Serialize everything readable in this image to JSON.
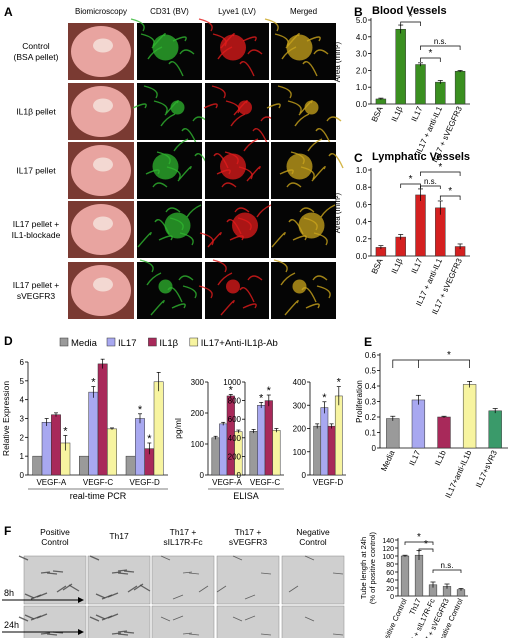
{
  "panel_a": {
    "letter": "A",
    "columns": [
      "Biomicroscopy",
      "CD31 (BV)",
      "Lyve1 (LV)",
      "Merged"
    ],
    "rows": [
      {
        "label": [
          "Control",
          "(BSA pellet)"
        ]
      },
      {
        "label": [
          "IL1β pellet"
        ]
      },
      {
        "label": [
          "IL17 pellet"
        ]
      },
      {
        "label": [
          "IL17 pellet +",
          "IL1-blockade"
        ]
      },
      {
        "label": [
          "IL17 pellet +",
          "sVEGFR3"
        ]
      }
    ],
    "colors": {
      "green": "#2fb52f",
      "red": "#e21b1b",
      "merged": "#c9a41c",
      "eye": "#e8a4a0"
    }
  },
  "panel_f": {
    "letter": "F",
    "columns": [
      "Positive Control",
      "Th17",
      "Th17 + sIL17R-Fc",
      "Th17 + sVEGFR3",
      "Negative Control"
    ],
    "column_lines": [
      [
        "Positive",
        "Control"
      ],
      [
        "Th17"
      ],
      [
        "Th17 +",
        "sIL17R-Fc"
      ],
      [
        "Th17 +",
        "sVEGFR3"
      ],
      [
        "Negative",
        "Control"
      ]
    ],
    "time_labels": [
      "8h",
      "24h"
    ]
  },
  "chart_data": [
    {
      "id": "B",
      "letter": "B",
      "type": "bar",
      "title": "Blood Vessels",
      "ylabel": "Area (mm²)",
      "categories": [
        "BSA",
        "IL1β",
        "IL17",
        "IL17 + anti-IL1",
        "IL17 + sVEGFR3"
      ],
      "values": [
        0.3,
        4.45,
        2.35,
        1.3,
        1.95
      ],
      "errors": [
        0.05,
        0.25,
        0.1,
        0.1,
        0.05
      ],
      "colors": [
        "#3a8f20",
        "#3a8f20",
        "#3a8f20",
        "#3a8f20",
        "#3a8f20"
      ],
      "ylim": [
        0,
        5
      ],
      "yticks": [
        "0.0",
        "1.0",
        "2.0",
        "3.0",
        "4.0",
        "5.0"
      ],
      "annotations": [
        "*",
        "*",
        "n.s."
      ]
    },
    {
      "id": "C",
      "letter": "C",
      "type": "bar",
      "title": "Lymphatic Vessels",
      "ylabel": "Area (mm²)",
      "categories": [
        "BSA",
        "IL1β",
        "IL17",
        "IL17 + anti-IL1",
        "IL17 + sVEGFR3"
      ],
      "values": [
        0.1,
        0.22,
        0.71,
        0.56,
        0.11
      ],
      "errors": [
        0.02,
        0.03,
        0.07,
        0.08,
        0.03
      ],
      "colors": [
        "#d42020",
        "#d42020",
        "#d42020",
        "#d42020",
        "#d42020"
      ],
      "ylim": [
        0,
        1.0
      ],
      "yticks": [
        "0.0",
        "0.2",
        "0.4",
        "0.6",
        "0.8",
        "1.0"
      ],
      "annotations": [
        "*",
        "n.s.",
        "*",
        "*"
      ]
    },
    {
      "id": "D1",
      "letter": "D",
      "type": "bar",
      "ylabel": "Relative Expression",
      "xlabel": "real-time PCR",
      "categories": [
        "VEGF-A",
        "VEGF-C",
        "VEGF-D"
      ],
      "series": [
        {
          "name": "Media",
          "color": "#9a9a9a",
          "values": [
            1.0,
            1.0,
            1.0
          ],
          "errors": [
            0,
            0,
            0
          ]
        },
        {
          "name": "IL17",
          "color": "#a8a8f0",
          "values": [
            2.8,
            4.4,
            3.0
          ],
          "errors": [
            0.2,
            0.3,
            0.25
          ]
        },
        {
          "name": "IL1β",
          "color": "#a8295a",
          "values": [
            3.2,
            5.9,
            1.4
          ],
          "errors": [
            0.1,
            0.25,
            0.3
          ]
        },
        {
          "name": "IL17+Anti-IL1β-Ab",
          "color": "#f7f4a0",
          "values": [
            1.7,
            2.45,
            4.95
          ],
          "errors": [
            0.4,
            0.05,
            0.5
          ]
        }
      ],
      "ylim": [
        0,
        6
      ],
      "yticks": [
        "0",
        "1",
        "2",
        "3",
        "4",
        "5",
        "6"
      ],
      "stars": [
        [
          2,
          1
        ],
        [
          2,
          2
        ],
        [
          1,
          1
        ],
        [
          0,
          3
        ]
      ]
    },
    {
      "id": "D2",
      "type": "bar",
      "ylabel": "pg/ml",
      "xlabel": "ELISA",
      "categories": [
        "VEGF-A",
        "VEGF-C"
      ],
      "series": [
        {
          "name": "Media",
          "color": "#9a9a9a",
          "values": [
            120,
            470
          ],
          "errors": [
            5,
            20
          ]
        },
        {
          "name": "IL17",
          "color": "#a8a8f0",
          "values": [
            165,
            750
          ],
          "errors": [
            5,
            30
          ]
        },
        {
          "name": "IL1β",
          "color": "#a8295a",
          "values": [
            255,
            800
          ],
          "errors": [
            5,
            60
          ]
        },
        {
          "name": "IL17+Anti-IL1β-Ab",
          "color": "#f7f4a0",
          "values": [
            140,
            480
          ],
          "errors": [
            5,
            20
          ]
        }
      ],
      "left_axis": {
        "ylim": [
          0,
          300
        ],
        "yticks": [
          "0",
          "100",
          "200",
          "300"
        ]
      },
      "right_axis": {
        "ylim": [
          0,
          1000
        ],
        "yticks": [
          "0",
          "200",
          "400",
          "600",
          "800",
          "1000"
        ]
      },
      "stars": [
        [
          0,
          2
        ],
        [
          1,
          1
        ],
        [
          1,
          2
        ]
      ]
    },
    {
      "id": "D3",
      "type": "bar",
      "categories": [
        "VEGF-D"
      ],
      "series": [
        {
          "name": "Media",
          "color": "#9a9a9a",
          "values": [
            210
          ],
          "errors": [
            10
          ]
        },
        {
          "name": "IL17",
          "color": "#a8a8f0",
          "values": [
            290
          ],
          "errors": [
            25
          ]
        },
        {
          "name": "IL1β",
          "color": "#a8295a",
          "values": [
            210
          ],
          "errors": [
            10
          ]
        },
        {
          "name": "IL17+Anti-IL1β-Ab",
          "color": "#f7f4a0",
          "values": [
            340
          ],
          "errors": [
            40
          ]
        }
      ],
      "ylim": [
        0,
        400
      ],
      "yticks": [
        "0",
        "100",
        "200",
        "300",
        "400"
      ],
      "stars": [
        [
          0,
          1
        ],
        [
          0,
          3
        ]
      ]
    },
    {
      "id": "E",
      "letter": "E",
      "type": "bar",
      "ylabel": "Proliferation",
      "categories": [
        "Media",
        "IL17",
        "IL1b",
        "IL17+anti-IL1b",
        "IL17+sVR3"
      ],
      "values": [
        0.19,
        0.31,
        0.2,
        0.41,
        0.24
      ],
      "errors": [
        0.015,
        0.03,
        0.005,
        0.02,
        0.015
      ],
      "colors": [
        "#9a9a9a",
        "#a8a8f0",
        "#a8295a",
        "#f7f4a0",
        "#3a9a6a"
      ],
      "ylim": [
        0,
        0.6
      ],
      "yticks": [
        "0",
        "0.1",
        "0.2",
        "0.3",
        "0.4",
        "0.5",
        "0.6"
      ],
      "annotations": [
        "*"
      ]
    },
    {
      "id": "F",
      "type": "bar",
      "ylabel": [
        "Tube length at 24h",
        "(% of positive control)"
      ],
      "categories": [
        "Positive Control",
        "Th17",
        "Th17 + sIL17R-Fc",
        "Th17 + sVEGFR3",
        "Negative Control"
      ],
      "values": [
        100,
        102,
        28,
        24,
        16
      ],
      "errors": [
        2,
        12,
        7,
        6,
        3
      ],
      "colors": [
        "#9a9a9a",
        "#9a9a9a",
        "#9a9a9a",
        "#9a9a9a",
        "#9a9a9a"
      ],
      "ylim": [
        0,
        140
      ],
      "yticks": [
        "0",
        "20",
        "40",
        "60",
        "80",
        "100",
        "120",
        "140"
      ],
      "annotations": [
        "*",
        "*",
        "n.s."
      ]
    }
  ]
}
